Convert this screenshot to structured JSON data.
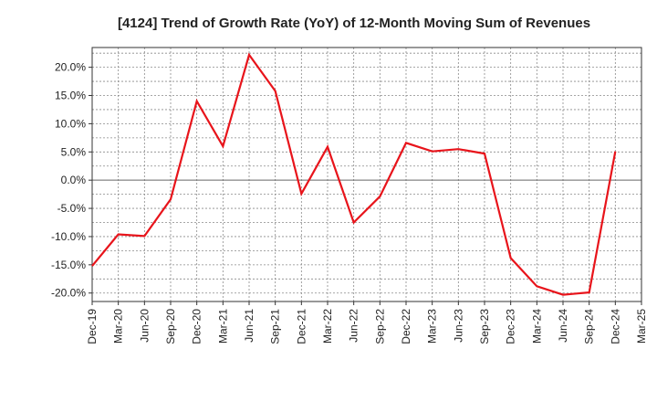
{
  "chart_data": {
    "type": "line",
    "title": "[4124]  Trend of Growth Rate (YoY) of 12-Month Moving Sum of Revenues",
    "xlabel": "",
    "ylabel": "",
    "x": [
      "Dec-19",
      "Mar-20",
      "Jun-20",
      "Sep-20",
      "Dec-20",
      "Mar-21",
      "Jun-21",
      "Sep-21",
      "Dec-21",
      "Mar-22",
      "Jun-22",
      "Sep-22",
      "Dec-22",
      "Mar-23",
      "Jun-23",
      "Sep-23",
      "Dec-23",
      "Mar-24",
      "Jun-24",
      "Sep-24",
      "Dec-24",
      "Mar-25"
    ],
    "series": [
      {
        "values": [
          -15.2,
          -9.6,
          -9.9,
          -3.4,
          14.0,
          6.0,
          22.2,
          15.8,
          -2.4,
          5.9,
          -7.5,
          -2.9,
          6.6,
          5.1,
          5.5,
          4.7,
          -13.8,
          -18.8,
          -20.3,
          -19.9,
          5.1,
          null
        ]
      }
    ],
    "y_ticks": [
      {
        "value": 20,
        "label": "20.0%"
      },
      {
        "value": 15,
        "label": "15.0%"
      },
      {
        "value": 10,
        "label": "10.0%"
      },
      {
        "value": 5,
        "label": "5.0%"
      },
      {
        "value": 0,
        "label": "0.0%"
      },
      {
        "value": -5,
        "label": "-5.0%"
      },
      {
        "value": -10,
        "label": "-10.0%"
      },
      {
        "value": -15,
        "label": "-15.0%"
      },
      {
        "value": -20,
        "label": "-20.0%"
      }
    ],
    "ylim": [
      -21.5,
      23.5
    ],
    "grid": true,
    "line_color": "#e8141b"
  }
}
